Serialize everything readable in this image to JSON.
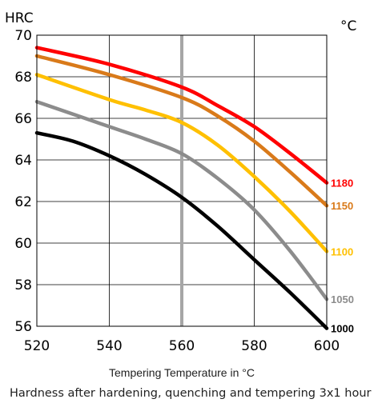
{
  "chart_data": {
    "type": "line",
    "y_unit_label": "HRC",
    "series_unit_label": "°C",
    "xlabel": "Tempering Temperature in °C",
    "caption": "Hardness after hardening, quenching and tempering  3x1 hour",
    "xlim": [
      520,
      600
    ],
    "ylim": [
      56,
      70
    ],
    "xticks": [
      520,
      540,
      560,
      580,
      600
    ],
    "yticks": [
      56,
      58,
      60,
      62,
      64,
      66,
      68,
      70
    ],
    "grid": true,
    "highlighted_x": 560,
    "series": [
      {
        "name": "1180",
        "color": "#ff0000",
        "points": [
          [
            520,
            69.4
          ],
          [
            540,
            68.6
          ],
          [
            560,
            67.5
          ],
          [
            570,
            66.6
          ],
          [
            580,
            65.6
          ],
          [
            590,
            64.3
          ],
          [
            600,
            62.9
          ]
        ]
      },
      {
        "name": "1150",
        "color": "#d97a1a",
        "points": [
          [
            520,
            69.0
          ],
          [
            540,
            68.1
          ],
          [
            560,
            67.0
          ],
          [
            570,
            66.1
          ],
          [
            580,
            64.9
          ],
          [
            590,
            63.4
          ],
          [
            600,
            61.8
          ]
        ]
      },
      {
        "name": "1100",
        "color": "#ffc000",
        "points": [
          [
            520,
            68.1
          ],
          [
            540,
            66.9
          ],
          [
            550,
            66.4
          ],
          [
            560,
            65.8
          ],
          [
            570,
            64.7
          ],
          [
            580,
            63.2
          ],
          [
            590,
            61.5
          ],
          [
            600,
            59.6
          ]
        ]
      },
      {
        "name": "1050",
        "color": "#8c8c8c",
        "points": [
          [
            520,
            66.8
          ],
          [
            540,
            65.6
          ],
          [
            550,
            65.0
          ],
          [
            560,
            64.3
          ],
          [
            570,
            63.1
          ],
          [
            580,
            61.6
          ],
          [
            590,
            59.6
          ],
          [
            600,
            57.3
          ]
        ]
      },
      {
        "name": "1000",
        "color": "#000000",
        "points": [
          [
            520,
            65.3
          ],
          [
            530,
            64.9
          ],
          [
            540,
            64.2
          ],
          [
            550,
            63.3
          ],
          [
            560,
            62.2
          ],
          [
            570,
            60.8
          ],
          [
            580,
            59.2
          ],
          [
            590,
            57.6
          ],
          [
            600,
            55.9
          ]
        ]
      }
    ]
  }
}
